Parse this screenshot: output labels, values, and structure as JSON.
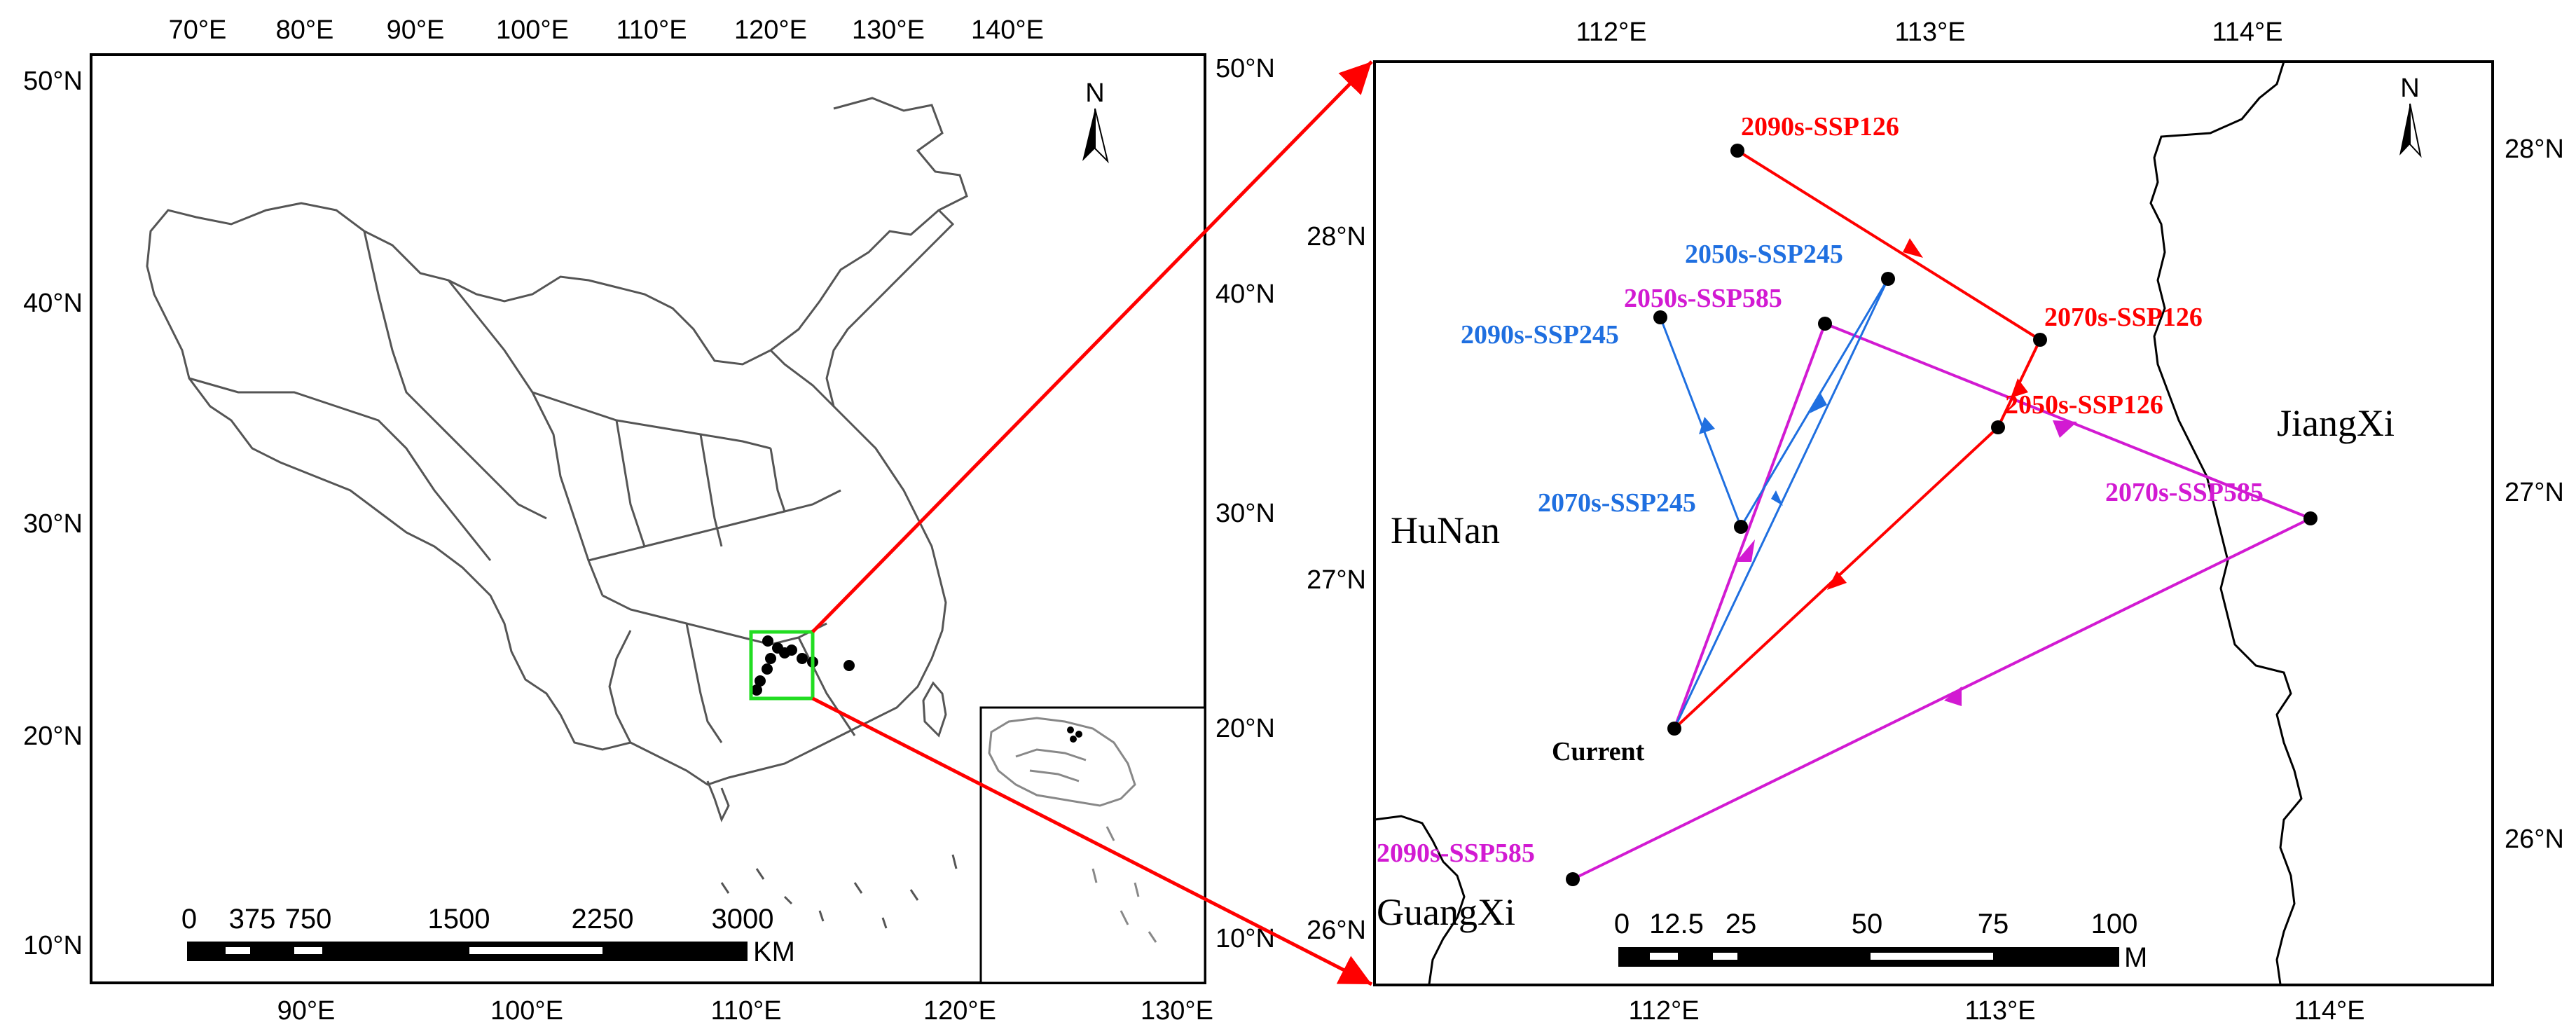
{
  "left_map": {
    "top_ticks": [
      "70°E",
      "80°E",
      "90°E",
      "100°E",
      "110°E",
      "120°E",
      "130°E",
      "140°E"
    ],
    "bottom_ticks": [
      "90°E",
      "100°E",
      "110°E",
      "120°E",
      "130°E"
    ],
    "left_ticks": [
      "50°N",
      "40°N",
      "30°N",
      "20°N",
      "10°N"
    ],
    "right_ticks": [
      "50°N",
      "40°N",
      "30°N",
      "20°N",
      "10°N"
    ],
    "north_label": "N",
    "scalebar": {
      "labels": [
        "0",
        "375",
        "750",
        "1500",
        "2250",
        "3000"
      ],
      "unit": "KM"
    }
  },
  "right_map": {
    "top_ticks": [
      "112°E",
      "113°E",
      "114°E"
    ],
    "bottom_ticks": [
      "112°E",
      "113°E",
      "114°E"
    ],
    "left_ticks": [
      "28°N",
      "27°N",
      "26°N"
    ],
    "right_ticks": [
      "28°N",
      "27°N",
      "26°N"
    ],
    "north_label": "N",
    "provinces": {
      "hunan": "HuNan",
      "jiangxi": "JiangXi",
      "guangxi": "GuangXi"
    },
    "scalebar": {
      "labels": [
        "0",
        "12.5",
        "25",
        "50",
        "75",
        "100"
      ],
      "unit": "M"
    },
    "points": {
      "current": "Current",
      "ssp126_2050": "2050s-SSP126",
      "ssp126_2070": "2070s-SSP126",
      "ssp126_2090": "2090s-SSP126",
      "ssp245_2050": "2050s-SSP245",
      "ssp245_2070": "2070s-SSP245",
      "ssp245_2090": "2090s-SSP245",
      "ssp585_2050": "2050s-SSP585",
      "ssp585_2070": "2070s-SSP585",
      "ssp585_2090": "2090s-SSP585"
    }
  },
  "colors": {
    "ssp126": "#ff0000",
    "ssp245": "#1f6fe0",
    "ssp585": "#d21ad2",
    "zoom_box": "#22dd22",
    "connector": "#ff0000"
  }
}
